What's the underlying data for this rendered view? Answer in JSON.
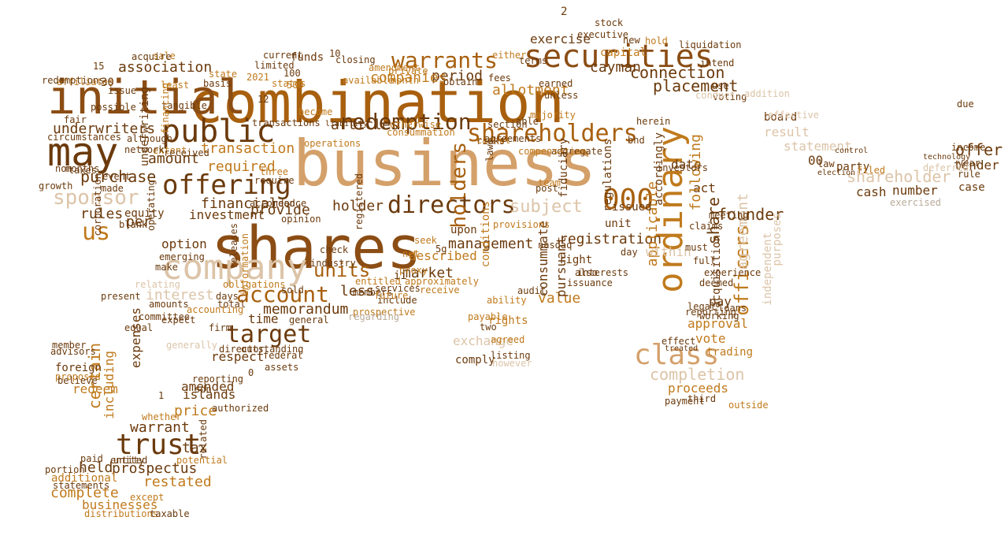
{
  "palette": {
    "dark": "#6b3a0c",
    "brown": "#8b4d14",
    "rust": "#a8600f",
    "orange": "#c07a1c",
    "tan": "#d4a06a",
    "beige": "#dcc4a8",
    "gray": "#b9ab9a"
  },
  "words": [
    {
      "text": "business",
      "c": "tan"
    },
    {
      "text": "combination",
      "c": "rust"
    },
    {
      "text": "shares",
      "c": "brown"
    },
    {
      "text": "initial",
      "c": "brown"
    },
    {
      "text": "may",
      "c": "dark"
    },
    {
      "text": "securities",
      "c": "brown"
    },
    {
      "text": "company",
      "c": "beige"
    },
    {
      "text": "shareholders",
      "c": "rust"
    },
    {
      "text": "public",
      "c": "dark"
    },
    {
      "text": "offering",
      "c": "dark"
    },
    {
      "text": "class",
      "c": "tan"
    },
    {
      "text": "trust",
      "c": "dark"
    },
    {
      "text": "target",
      "c": "dark"
    },
    {
      "text": "directors",
      "c": "dark"
    },
    {
      "text": "warrants",
      "c": "rust"
    },
    {
      "text": "ordinary",
      "c": "orange"
    },
    {
      "text": "account",
      "c": "rust"
    },
    {
      "text": "000",
      "c": "rust"
    },
    {
      "text": "sponsor",
      "c": "beige"
    },
    {
      "text": "us",
      "c": "orange"
    },
    {
      "text": "redemption",
      "c": "dark"
    },
    {
      "text": "subject",
      "c": "beige"
    },
    {
      "text": "holders",
      "c": "rust"
    },
    {
      "text": "officers",
      "c": "orange"
    },
    {
      "text": "units",
      "c": "rust"
    },
    {
      "text": "completion",
      "c": "beige"
    },
    {
      "text": "shareholder",
      "c": "beige"
    },
    {
      "text": "association",
      "c": "dark"
    },
    {
      "text": "connection",
      "c": "dark"
    },
    {
      "text": "placement",
      "c": "dark"
    },
    {
      "text": "cayman",
      "c": "dark"
    },
    {
      "text": "capital",
      "c": "orange"
    },
    {
      "text": "allotment",
      "c": "orange"
    },
    {
      "text": "period",
      "c": "dark"
    },
    {
      "text": "companies",
      "c": "orange"
    },
    {
      "text": "articles",
      "c": "dark"
    },
    {
      "text": "amount",
      "c": "dark"
    },
    {
      "text": "purchase",
      "c": "dark"
    },
    {
      "text": "required",
      "c": "orange"
    },
    {
      "text": "transaction",
      "c": "orange"
    },
    {
      "text": "underwriters",
      "c": "dark"
    },
    {
      "text": "financial",
      "c": "dark"
    },
    {
      "text": "investment",
      "c": "dark"
    },
    {
      "text": "rules",
      "c": "dark"
    },
    {
      "text": "per",
      "c": "dark"
    },
    {
      "text": "provide",
      "c": "dark"
    },
    {
      "text": "holder",
      "c": "dark"
    },
    {
      "text": "option",
      "c": "dark"
    },
    {
      "text": "management",
      "c": "dark"
    },
    {
      "text": "described",
      "c": "orange"
    },
    {
      "text": "market",
      "c": "dark"
    },
    {
      "text": "interest",
      "c": "beige"
    },
    {
      "text": "less",
      "c": "dark"
    },
    {
      "text": "memorandum",
      "c": "dark"
    },
    {
      "text": "time",
      "c": "dark"
    },
    {
      "text": "respect",
      "c": "dark"
    },
    {
      "text": "amended",
      "c": "dark"
    },
    {
      "text": "islands",
      "c": "dark"
    },
    {
      "text": "redeem",
      "c": "orange"
    },
    {
      "text": "certain",
      "c": "orange"
    },
    {
      "text": "including",
      "c": "orange"
    },
    {
      "text": "expenses",
      "c": "dark"
    },
    {
      "text": "price",
      "c": "orange"
    },
    {
      "text": "warrant",
      "c": "dark"
    },
    {
      "text": "tax",
      "c": "dark"
    },
    {
      "text": "held",
      "c": "dark"
    },
    {
      "text": "prospectus",
      "c": "dark"
    },
    {
      "text": "complete",
      "c": "orange"
    },
    {
      "text": "restated",
      "c": "orange"
    },
    {
      "text": "businesses",
      "c": "orange"
    },
    {
      "text": "additional",
      "c": "orange"
    },
    {
      "text": "value",
      "c": "orange"
    },
    {
      "text": "rights",
      "c": "orange"
    },
    {
      "text": "exchange",
      "c": "beige"
    },
    {
      "text": "vote",
      "c": "orange"
    },
    {
      "text": "approval",
      "c": "orange"
    },
    {
      "text": "proceeds",
      "c": "orange"
    },
    {
      "text": "registration",
      "c": "dark"
    },
    {
      "text": "founder",
      "c": "dark"
    },
    {
      "text": "act",
      "c": "dark"
    },
    {
      "text": "date",
      "c": "dark"
    },
    {
      "text": "pay",
      "c": "dark"
    },
    {
      "text": "share",
      "c": "dark"
    },
    {
      "text": "applicable",
      "c": "orange"
    },
    {
      "text": "following",
      "c": "orange"
    },
    {
      "text": "agreement",
      "c": "beige"
    },
    {
      "text": "result",
      "c": "beige"
    },
    {
      "text": "offer",
      "c": "dark"
    },
    {
      "text": "cash",
      "c": "dark"
    },
    {
      "text": "number",
      "c": "dark"
    },
    {
      "text": "board",
      "c": "dark"
    },
    {
      "text": "statement",
      "c": "beige"
    },
    {
      "text": "exercised",
      "c": "gray"
    },
    {
      "text": "exercise",
      "c": "dark"
    },
    {
      "text": "funds",
      "c": "dark"
    },
    {
      "text": "upon",
      "c": "dark"
    },
    {
      "text": "consummate",
      "c": "dark"
    },
    {
      "text": "pursuant",
      "c": "dark"
    },
    {
      "text": "within",
      "c": "beige"
    },
    {
      "text": "issued",
      "c": "dark"
    },
    {
      "text": "unit",
      "c": "dark"
    },
    {
      "text": "right",
      "c": "dark"
    },
    {
      "text": "also",
      "c": "dark"
    },
    {
      "text": "trading",
      "c": "orange"
    },
    {
      "text": "effect",
      "c": "dark"
    },
    {
      "text": "third",
      "c": "dark"
    },
    {
      "text": "independent",
      "c": "beige"
    },
    {
      "text": "purposes",
      "c": "beige"
    },
    {
      "text": "acquisition",
      "c": "dark"
    },
    {
      "text": "claims",
      "c": "dark"
    },
    {
      "text": "full",
      "c": "dark"
    },
    {
      "text": "must",
      "c": "dark"
    },
    {
      "text": "law",
      "c": "dark"
    },
    {
      "text": "party",
      "c": "dark"
    },
    {
      "text": "case",
      "c": "dark"
    },
    {
      "text": "rule",
      "c": "dark"
    },
    {
      "text": "tender",
      "c": "dark"
    },
    {
      "text": "income",
      "c": "dark"
    },
    {
      "text": "due",
      "c": "dark"
    },
    {
      "text": "year",
      "c": "dark"
    },
    {
      "text": "filed",
      "c": "orange"
    },
    {
      "text": "election",
      "c": "dark"
    },
    {
      "text": "control",
      "c": "dark"
    },
    {
      "text": "deferred",
      "c": "beige"
    },
    {
      "text": "technology",
      "c": "dark"
    },
    {
      "text": "treated",
      "c": "dark"
    },
    {
      "text": "listing",
      "c": "dark"
    },
    {
      "text": "generally",
      "c": "beige"
    },
    {
      "text": "obligations",
      "c": "orange"
    },
    {
      "text": "outstanding",
      "c": "dark"
    },
    {
      "text": "director",
      "c": "dark"
    },
    {
      "text": "accounting",
      "c": "orange"
    },
    {
      "text": "general",
      "c": "dark"
    },
    {
      "text": "federal",
      "c": "dark"
    },
    {
      "text": "assets",
      "c": "dark"
    },
    {
      "text": "united",
      "c": "dark"
    },
    {
      "text": "whether",
      "c": "orange"
    },
    {
      "text": "entity",
      "c": "dark"
    },
    {
      "text": "potential",
      "c": "orange"
    },
    {
      "text": "except",
      "c": "orange"
    },
    {
      "text": "distributions",
      "c": "orange"
    },
    {
      "text": "taxable",
      "c": "dark"
    },
    {
      "text": "statements",
      "c": "dark"
    },
    {
      "text": "paid",
      "c": "dark"
    },
    {
      "text": "portion",
      "c": "dark"
    },
    {
      "text": "foreign",
      "c": "dark"
    },
    {
      "text": "member",
      "c": "dark"
    },
    {
      "text": "advisors",
      "c": "dark"
    },
    {
      "text": "proposed",
      "c": "orange"
    },
    {
      "text": "believe",
      "c": "dark"
    },
    {
      "text": "equal",
      "c": "dark"
    },
    {
      "text": "committee",
      "c": "dark"
    },
    {
      "text": "expect",
      "c": "dark"
    },
    {
      "text": "amounts",
      "c": "dark"
    },
    {
      "text": "emerging",
      "c": "dark"
    },
    {
      "text": "make",
      "c": "dark"
    },
    {
      "text": "present",
      "c": "dark"
    },
    {
      "text": "equity",
      "c": "dark"
    },
    {
      "text": "blank",
      "c": "dark"
    },
    {
      "text": "affiliates",
      "c": "orange"
    },
    {
      "text": "non",
      "c": "dark"
    },
    {
      "text": "growth",
      "c": "dark"
    },
    {
      "text": "taxes",
      "c": "dark"
    },
    {
      "text": "months",
      "c": "dark"
    },
    {
      "text": "event",
      "c": "dark"
    },
    {
      "text": "made",
      "c": "dark"
    },
    {
      "text": "extent",
      "c": "orange"
    },
    {
      "text": "received",
      "c": "dark"
    },
    {
      "text": "network",
      "c": "dark"
    },
    {
      "text": "although",
      "c": "dark"
    },
    {
      "text": "circumstances",
      "c": "dark"
    },
    {
      "text": "fair",
      "c": "dark"
    },
    {
      "text": "redemptions",
      "c": "dark"
    },
    {
      "text": "issue",
      "c": "dark"
    },
    {
      "text": "possible",
      "c": "dark"
    },
    {
      "text": "sale",
      "c": "orange"
    },
    {
      "text": "acquire",
      "c": "dark"
    },
    {
      "text": "tangible",
      "c": "dark"
    },
    {
      "text": "least",
      "c": "orange"
    },
    {
      "text": "state",
      "c": "orange"
    },
    {
      "text": "limited",
      "c": "dark"
    },
    {
      "text": "states",
      "c": "orange"
    },
    {
      "text": "current",
      "c": "dark"
    },
    {
      "text": "basis",
      "c": "dark"
    },
    {
      "text": "closing",
      "c": "dark"
    },
    {
      "text": "available",
      "c": "orange"
    },
    {
      "text": "month",
      "c": "orange"
    },
    {
      "text": "private",
      "c": "orange"
    },
    {
      "text": "amendment",
      "c": "orange"
    },
    {
      "text": "obtain",
      "c": "dark"
    },
    {
      "text": "fees",
      "c": "dark"
    },
    {
      "text": "either",
      "c": "orange"
    },
    {
      "text": "terms",
      "c": "dark"
    },
    {
      "text": "earned",
      "c": "dark"
    },
    {
      "text": "unless",
      "c": "dark"
    },
    {
      "text": "executive",
      "c": "dark"
    },
    {
      "text": "stock",
      "c": "dark"
    },
    {
      "text": "new",
      "c": "dark"
    },
    {
      "text": "hold",
      "c": "orange"
    },
    {
      "text": "intend",
      "c": "dark"
    },
    {
      "text": "use",
      "c": "dark"
    },
    {
      "text": "herein",
      "c": "dark"
    },
    {
      "text": "bhd",
      "c": "dark"
    },
    {
      "text": "aggregate",
      "c": "dark"
    },
    {
      "text": "compensation",
      "c": "orange"
    },
    {
      "text": "investors",
      "c": "dark"
    },
    {
      "text": "able",
      "c": "dark"
    },
    {
      "text": "majority",
      "c": "orange"
    },
    {
      "text": "risks",
      "c": "dark"
    },
    {
      "text": "cannot",
      "c": "orange"
    },
    {
      "text": "consummation",
      "c": "orange"
    },
    {
      "text": "otherwise",
      "c": "orange"
    },
    {
      "text": "operations",
      "c": "orange"
    },
    {
      "text": "transactions",
      "c": "dark"
    },
    {
      "text": "three",
      "c": "orange"
    },
    {
      "text": "require",
      "c": "dark"
    },
    {
      "text": "section",
      "c": "dark"
    },
    {
      "text": "agreements",
      "c": "dark"
    },
    {
      "text": "provisions",
      "c": "orange"
    },
    {
      "text": "conditions",
      "c": "orange"
    },
    {
      "text": "ability",
      "c": "orange"
    },
    {
      "text": "approximately",
      "c": "orange"
    },
    {
      "text": "receive",
      "c": "orange"
    },
    {
      "text": "entitled",
      "c": "orange"
    },
    {
      "text": "services",
      "c": "dark"
    },
    {
      "text": "proxy",
      "c": "orange"
    },
    {
      "text": "net",
      "c": "orange"
    },
    {
      "text": "seek",
      "c": "orange"
    },
    {
      "text": "include",
      "c": "dark"
    },
    {
      "text": "members",
      "c": "dark"
    },
    {
      "text": "prospective",
      "c": "orange"
    },
    {
      "text": "future",
      "c": "orange"
    },
    {
      "text": "check",
      "c": "dark"
    },
    {
      "text": "sold",
      "c": "dark"
    },
    {
      "text": "industry",
      "c": "dark"
    },
    {
      "text": "opinion",
      "c": "dark"
    },
    {
      "text": "accordance",
      "c": "dark"
    },
    {
      "text": "need",
      "c": "dark"
    },
    {
      "text": "information",
      "c": "orange"
    },
    {
      "text": "relating",
      "c": "beige"
    },
    {
      "text": "days",
      "c": "dark"
    },
    {
      "text": "total",
      "c": "dark"
    },
    {
      "text": "firm",
      "c": "dark"
    },
    {
      "text": "reporting",
      "c": "dark"
    },
    {
      "text": "authorized",
      "c": "dark"
    },
    {
      "text": "sdn",
      "c": "dark"
    },
    {
      "text": "issuance",
      "c": "dark"
    },
    {
      "text": "nasdaq",
      "c": "dark"
    },
    {
      "text": "interests",
      "c": "dark"
    },
    {
      "text": "day",
      "c": "dark"
    },
    {
      "text": "legal",
      "c": "dark"
    },
    {
      "text": "outside",
      "c": "orange"
    },
    {
      "text": "payment",
      "c": "dark"
    },
    {
      "text": "loans",
      "c": "dark"
    },
    {
      "text": "meeting",
      "c": "dark"
    },
    {
      "text": "working",
      "c": "dark"
    },
    {
      "text": "two",
      "c": "dark"
    },
    {
      "text": "agreed",
      "c": "orange"
    },
    {
      "text": "audit",
      "c": "dark"
    },
    {
      "text": "comply",
      "c": "dark"
    },
    {
      "text": "however",
      "c": "beige"
    },
    {
      "text": "regarding",
      "c": "gray"
    },
    {
      "text": "payable",
      "c": "orange"
    },
    {
      "text": "post",
      "c": "dark"
    },
    {
      "text": "team",
      "c": "orange"
    },
    {
      "text": "deemed",
      "c": "dark"
    },
    {
      "text": "experience",
      "c": "dark"
    },
    {
      "text": "voting",
      "c": "dark"
    },
    {
      "text": "effective",
      "c": "beige"
    },
    {
      "text": "addition",
      "c": "beige"
    },
    {
      "text": "conduct",
      "c": "beige"
    },
    {
      "text": "become",
      "c": "orange"
    },
    {
      "text": "2021",
      "c": "orange"
    },
    {
      "text": "100",
      "c": "dark"
    },
    {
      "text": "500",
      "c": "orange"
    },
    {
      "text": "10",
      "c": "dark"
    },
    {
      "text": "15",
      "c": "dark"
    },
    {
      "text": "30",
      "c": "dark"
    },
    {
      "text": "12",
      "c": "dark"
    },
    {
      "text": "ii",
      "c": "dark"
    },
    {
      "text": "0",
      "c": "dark"
    },
    {
      "text": "1",
      "c": "dark"
    },
    {
      "text": "2",
      "c": "dark"
    },
    {
      "text": "00",
      "c": "dark"
    },
    {
      "text": "5g",
      "c": "dark"
    },
    {
      "text": "liability",
      "c": "dark"
    },
    {
      "text": "reporting",
      "c": "dark"
    },
    {
      "text": "liquidation",
      "c": "dark"
    },
    {
      "text": "underwriting",
      "c": "dark"
    },
    {
      "text": "accordingly",
      "c": "dark"
    },
    {
      "text": "regulations",
      "c": "dark"
    },
    {
      "text": "fiduciary",
      "c": "dark"
    },
    {
      "text": "releases",
      "c": "dark"
    },
    {
      "text": "corporation",
      "c": "dark"
    },
    {
      "text": "operating",
      "c": "dark"
    },
    {
      "text": "financing",
      "c": "orange"
    },
    {
      "text": "laws",
      "c": "dark"
    },
    {
      "text": "registered",
      "c": "dark"
    },
    {
      "text": "related",
      "c": "dark"
    },
    {
      "text": "costs",
      "c": "orange"
    },
    {
      "text": "take",
      "c": "orange"
    },
    {
      "text": "factors",
      "c": "dark"
    },
    {
      "text": "material",
      "c": "dark"
    },
    {
      "text": "part",
      "c": "orange"
    },
    {
      "text": "without",
      "c": "dark"
    },
    {
      "text": "shall",
      "c": "dark"
    },
    {
      "text": "pfic",
      "c": "dark"
    },
    {
      "text": "order",
      "c": "orange"
    },
    {
      "text": "form",
      "c": "dark"
    },
    {
      "text": "debt",
      "c": "dark"
    },
    {
      "text": "offered",
      "c": "dark"
    }
  ]
}
